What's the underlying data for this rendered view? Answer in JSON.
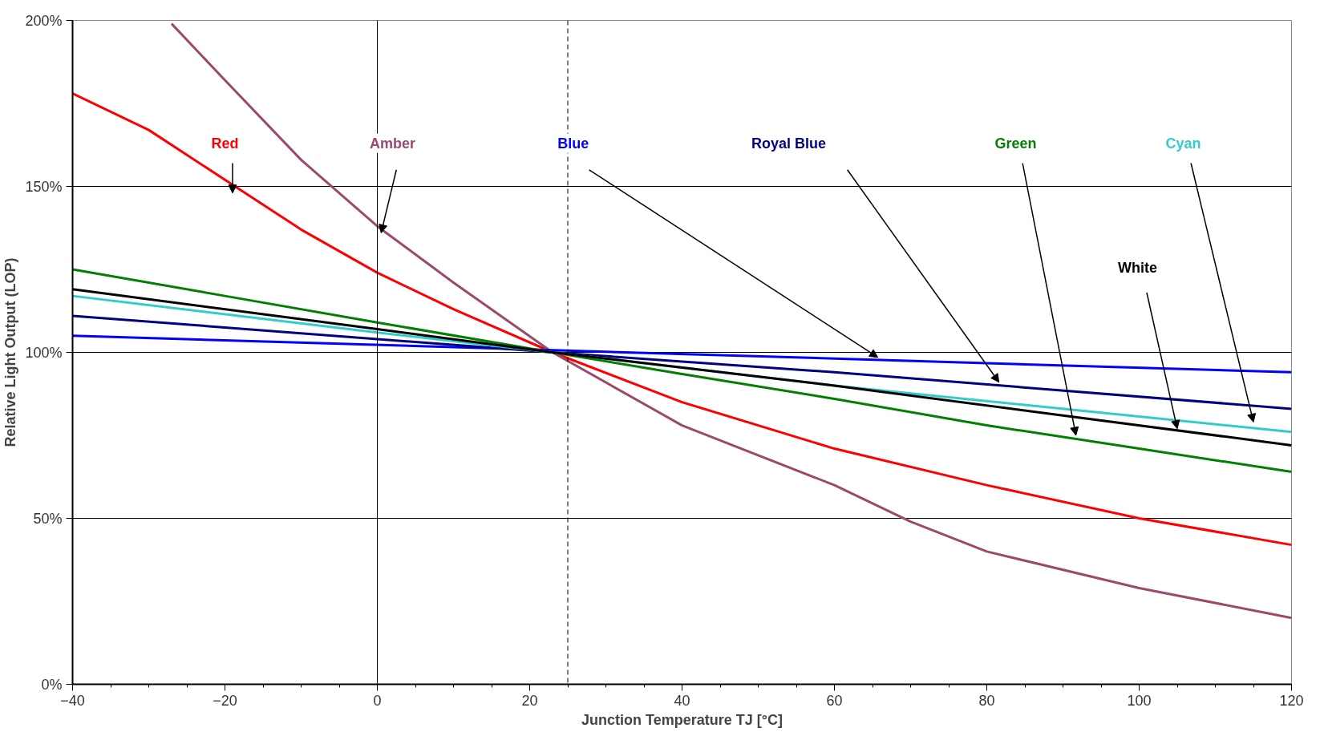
{
  "chart_data": {
    "type": "line",
    "xlabel": "Junction Temperature TJ [°C]",
    "ylabel": "Relative Light Output (LOP)",
    "xlim": [
      -40,
      120
    ],
    "ylim": [
      0,
      200
    ],
    "xticks": [
      -40,
      -20,
      0,
      20,
      40,
      60,
      80,
      100,
      120
    ],
    "yticks": [
      {
        "value": 0,
        "label": "0%"
      },
      {
        "value": 50,
        "label": "50%"
      },
      {
        "value": 100,
        "label": "100%"
      },
      {
        "value": 150,
        "label": "150%"
      },
      {
        "value": 200,
        "label": "200%"
      }
    ],
    "grid": "y",
    "marker": "none",
    "line_style": "solid",
    "ref_lines": [
      {
        "axis": "x",
        "value": 0,
        "color": "#000000",
        "line_style": "solid"
      },
      {
        "axis": "x",
        "value": 25,
        "color": "#000000",
        "line_style": "dashed"
      }
    ],
    "series": [
      {
        "name": "Red",
        "color": "#ff0000",
        "x": [
          -40,
          -30,
          -20,
          -10,
          0,
          10,
          23,
          40,
          60,
          80,
          100,
          120
        ],
        "values": [
          178,
          167,
          152,
          137,
          124,
          113,
          100,
          85,
          71,
          60,
          50,
          42
        ]
      },
      {
        "name": "Amber",
        "color": "#9b4a6e",
        "x": [
          -27,
          -20,
          -10,
          0,
          10,
          23,
          40,
          60,
          70,
          80,
          100,
          120
        ],
        "values": [
          199,
          182,
          158,
          138,
          121,
          100,
          78,
          60,
          49,
          40,
          29,
          20
        ]
      },
      {
        "name": "Blue",
        "color": "#0000ff",
        "x": [
          -40,
          120
        ],
        "values": [
          105,
          94
        ]
      },
      {
        "name": "Royal Blue",
        "color": "#000080",
        "x": [
          -40,
          23,
          60,
          120
        ],
        "values": [
          111,
          100,
          94,
          83
        ]
      },
      {
        "name": "Green",
        "color": "#008000",
        "x": [
          -40,
          -20,
          0,
          23,
          40,
          60,
          80,
          100,
          120
        ],
        "values": [
          125,
          117,
          109,
          100,
          93.5,
          86,
          78,
          71,
          64
        ]
      },
      {
        "name": "Cyan",
        "color": "#33cccc",
        "x": [
          -40,
          0,
          23,
          60,
          120
        ],
        "values": [
          117,
          106,
          100,
          90,
          76
        ]
      },
      {
        "name": "White",
        "color": "#000000",
        "x": [
          -40,
          0,
          23,
          60,
          90,
          120
        ],
        "values": [
          119,
          107,
          100,
          90,
          81,
          72
        ]
      }
    ]
  }
}
